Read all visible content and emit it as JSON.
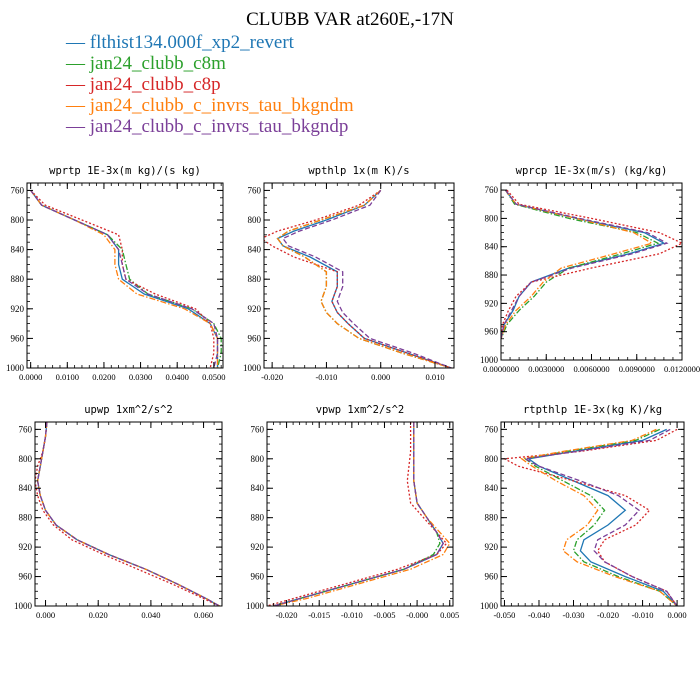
{
  "title": "CLUBB VAR at260E,-17N",
  "legend": [
    {
      "name": "flthist134.000f_xp2_revert",
      "color": "#1f77b4",
      "dash": "solid"
    },
    {
      "name": "jan24_clubb_c8m",
      "color": "#2ca02c",
      "dash": "dashdot"
    },
    {
      "name": "jan24_clubb_c8p",
      "color": "#d62728",
      "dash": "dot"
    },
    {
      "name": "jan24_clubb_c_invrs_tau_bkgndm",
      "color": "#ff7f0e",
      "dash": "dashdot"
    },
    {
      "name": "jan24_clubb_c_invrs_tau_bkgndp",
      "color": "#7b3f98",
      "dash": "dash"
    }
  ],
  "chart_data": [
    {
      "type": "line",
      "title": "wprtp  1E-3x(m kg)/(s kg)",
      "xlim": [
        -0.001,
        0.0525
      ],
      "ylim": [
        1000,
        750
      ],
      "xticks": [
        0.0,
        0.01,
        0.02,
        0.03,
        0.04,
        0.05
      ],
      "xtick_labels": [
        "0.0000",
        "0.0100",
        "0.0200",
        "0.0300",
        "0.0400",
        "0.0500"
      ],
      "yticks": [
        760,
        800,
        840,
        880,
        920,
        960,
        1000
      ],
      "y": [
        760,
        780,
        800,
        820,
        840,
        860,
        880,
        900,
        920,
        940,
        960,
        980,
        1000
      ],
      "series": [
        {
          "values": [
            0.0,
            0.003,
            0.012,
            0.021,
            0.024,
            0.024,
            0.025,
            0.031,
            0.043,
            0.049,
            0.051,
            0.051,
            0.051
          ]
        },
        {
          "values": [
            0.0,
            0.003,
            0.012,
            0.021,
            0.025,
            0.026,
            0.027,
            0.032,
            0.044,
            0.05,
            0.052,
            0.052,
            0.051
          ]
        },
        {
          "values": [
            0.0,
            0.004,
            0.014,
            0.024,
            0.025,
            0.025,
            0.026,
            0.034,
            0.045,
            0.049,
            0.05,
            0.05,
            0.049
          ]
        },
        {
          "values": [
            0.0,
            0.003,
            0.012,
            0.02,
            0.023,
            0.023,
            0.024,
            0.029,
            0.042,
            0.049,
            0.051,
            0.051,
            0.051
          ]
        },
        {
          "values": [
            0.0,
            0.003,
            0.012,
            0.021,
            0.024,
            0.025,
            0.026,
            0.032,
            0.044,
            0.05,
            0.051,
            0.051,
            0.05
          ]
        }
      ]
    },
    {
      "type": "line",
      "title": "wpthlp  1x(m K)/s",
      "xlim": [
        -0.0215,
        0.0135
      ],
      "ylim": [
        1000,
        750
      ],
      "xticks": [
        -0.02,
        -0.01,
        0.0,
        0.01
      ],
      "xtick_labels": [
        "-0.020",
        "-0.010",
        "0.000",
        "0.010"
      ],
      "yticks": [
        760,
        800,
        840,
        880,
        920,
        960,
        1000
      ],
      "y": [
        760,
        780,
        800,
        815,
        825,
        835,
        850,
        870,
        890,
        910,
        925,
        940,
        960,
        980,
        1000
      ],
      "series": [
        {
          "values": [
            0.0,
            -0.003,
            -0.01,
            -0.016,
            -0.019,
            -0.018,
            -0.013,
            -0.008,
            -0.008,
            -0.009,
            -0.008,
            -0.006,
            -0.003,
            0.005,
            0.013
          ]
        },
        {
          "values": [
            0.0,
            -0.003,
            -0.011,
            -0.017,
            -0.019,
            -0.018,
            -0.014,
            -0.01,
            -0.01,
            -0.011,
            -0.01,
            -0.008,
            -0.004,
            0.004,
            0.013
          ]
        },
        {
          "values": [
            0.0,
            -0.004,
            -0.012,
            -0.019,
            -0.022,
            -0.02,
            -0.016,
            -0.008,
            -0.008,
            -0.009,
            -0.008,
            -0.006,
            -0.003,
            0.005,
            0.013
          ]
        },
        {
          "values": [
            0.0,
            -0.003,
            -0.011,
            -0.017,
            -0.019,
            -0.018,
            -0.014,
            -0.01,
            -0.01,
            -0.011,
            -0.01,
            -0.008,
            -0.004,
            0.004,
            0.013
          ]
        },
        {
          "values": [
            0.0,
            -0.002,
            -0.009,
            -0.015,
            -0.018,
            -0.017,
            -0.012,
            -0.007,
            -0.007,
            -0.008,
            -0.007,
            -0.005,
            -0.002,
            0.006,
            0.013
          ]
        }
      ]
    },
    {
      "type": "line",
      "title": "wprcp  1E-3x(m/s) (kg/kg)",
      "xlim": [
        0.0,
        0.012
      ],
      "ylim": [
        1000,
        750
      ],
      "xticks": [
        0.0,
        0.003,
        0.006,
        0.009,
        0.012
      ],
      "xtick_labels": [
        "0.0000000",
        "0.0030000",
        "0.0060000",
        "0.0090000",
        "0.0120000"
      ],
      "yticks": [
        760,
        800,
        840,
        880,
        920,
        960,
        1000
      ],
      "y": [
        760,
        780,
        800,
        820,
        835,
        850,
        870,
        890,
        910,
        930,
        950,
        970
      ],
      "series": [
        {
          "values": [
            0.0003,
            0.001,
            0.005,
            0.0095,
            0.0108,
            0.0085,
            0.0045,
            0.002,
            0.0012,
            0.0008,
            0.0002,
            0.0
          ]
        },
        {
          "values": [
            0.0003,
            0.0009,
            0.0045,
            0.009,
            0.0104,
            0.008,
            0.0045,
            0.003,
            0.0022,
            0.0012,
            0.0004,
            0.0
          ]
        },
        {
          "values": [
            0.0004,
            0.0012,
            0.006,
            0.0105,
            0.012,
            0.0105,
            0.006,
            0.002,
            0.001,
            0.0005,
            0.0001,
            0.0
          ]
        },
        {
          "values": [
            0.0003,
            0.001,
            0.005,
            0.0088,
            0.01,
            0.0075,
            0.004,
            0.0028,
            0.002,
            0.001,
            0.0003,
            0.0
          ]
        },
        {
          "values": [
            0.0003,
            0.001,
            0.0052,
            0.0097,
            0.011,
            0.0087,
            0.0047,
            0.002,
            0.0012,
            0.0007,
            0.0002,
            0.0
          ]
        }
      ]
    },
    {
      "type": "line",
      "title": "upwp  1xm^2/s^2",
      "xlim": [
        -0.004,
        0.067
      ],
      "ylim": [
        1000,
        750
      ],
      "xticks": [
        0.0,
        0.02,
        0.04,
        0.06
      ],
      "xtick_labels": [
        "0.000",
        "0.020",
        "0.040",
        "0.060"
      ],
      "yticks": [
        760,
        800,
        840,
        880,
        920,
        960,
        1000
      ],
      "y": [
        750,
        770,
        790,
        810,
        830,
        850,
        870,
        890,
        910,
        930,
        950,
        970,
        990,
        1000
      ],
      "series": [
        {
          "values": [
            0.0005,
            0.0,
            -0.001,
            -0.002,
            -0.003,
            -0.002,
            0.0,
            0.004,
            0.012,
            0.024,
            0.038,
            0.05,
            0.061,
            0.066
          ]
        },
        {
          "values": [
            0.0005,
            0.0,
            -0.001,
            -0.002,
            -0.003,
            -0.002,
            0.0,
            0.004,
            0.012,
            0.024,
            0.038,
            0.05,
            0.061,
            0.066
          ]
        },
        {
          "values": [
            0.0005,
            0.0,
            -0.001,
            -0.003,
            -0.004,
            -0.003,
            -0.001,
            0.003,
            0.01,
            0.022,
            0.035,
            0.048,
            0.06,
            0.066
          ]
        },
        {
          "values": [
            0.0005,
            0.0,
            -0.001,
            -0.002,
            -0.003,
            -0.002,
            0.0,
            0.004,
            0.012,
            0.024,
            0.038,
            0.05,
            0.061,
            0.066
          ]
        },
        {
          "values": [
            0.0005,
            0.0,
            -0.001,
            -0.002,
            -0.003,
            -0.002,
            0.0,
            0.004,
            0.012,
            0.024,
            0.038,
            0.05,
            0.061,
            0.066
          ]
        }
      ]
    },
    {
      "type": "line",
      "title": "vpwp  1xm^2/s^2",
      "xlim": [
        -0.023,
        0.0055
      ],
      "ylim": [
        1000,
        750
      ],
      "xticks": [
        -0.02,
        -0.015,
        -0.01,
        -0.005,
        0.0,
        0.005
      ],
      "xtick_labels": [
        "-0.020",
        "-0.015",
        "-0.010",
        "-0.005",
        "-0.000",
        "0.005"
      ],
      "yticks": [
        760,
        800,
        840,
        880,
        920,
        960,
        1000
      ],
      "y": [
        750,
        790,
        830,
        860,
        880,
        900,
        915,
        930,
        950,
        970,
        990,
        1000
      ],
      "series": [
        {
          "values": [
            -0.0005,
            -0.0005,
            -0.0005,
            0.0,
            0.0015,
            0.003,
            0.004,
            0.003,
            -0.002,
            -0.01,
            -0.018,
            -0.022
          ]
        },
        {
          "values": [
            -0.0005,
            -0.0005,
            -0.0005,
            0.0,
            0.0015,
            0.003,
            0.0035,
            0.0025,
            -0.002,
            -0.01,
            -0.018,
            -0.022
          ]
        },
        {
          "values": [
            -0.001,
            -0.001,
            -0.0015,
            -0.001,
            0.001,
            0.003,
            0.0045,
            0.003,
            -0.003,
            -0.011,
            -0.019,
            -0.023
          ]
        },
        {
          "values": [
            -0.0005,
            -0.0005,
            -0.0005,
            0.0,
            0.0015,
            0.0035,
            0.005,
            0.004,
            -0.001,
            -0.009,
            -0.017,
            -0.022
          ]
        },
        {
          "values": [
            -0.0005,
            -0.0005,
            -0.0005,
            0.0,
            0.0015,
            0.003,
            0.004,
            0.003,
            -0.002,
            -0.01,
            -0.018,
            -0.022
          ]
        }
      ]
    },
    {
      "type": "line",
      "title": "rtpthlp  1E-3x(kg K)/kg",
      "xlim": [
        -0.051,
        0.002
      ],
      "ylim": [
        1000,
        750
      ],
      "xticks": [
        -0.05,
        -0.04,
        -0.03,
        -0.02,
        -0.01,
        0.0
      ],
      "xtick_labels": [
        "-0.050",
        "-0.040",
        "-0.030",
        "-0.020",
        "-0.010",
        "0.000"
      ],
      "yticks": [
        760,
        800,
        840,
        880,
        920,
        960,
        1000
      ],
      "y": [
        760,
        775,
        790,
        800,
        810,
        830,
        850,
        870,
        890,
        910,
        925,
        940,
        960,
        980,
        1000
      ],
      "series": [
        {
          "values": [
            -0.003,
            -0.01,
            -0.03,
            -0.043,
            -0.04,
            -0.03,
            -0.02,
            -0.015,
            -0.02,
            -0.027,
            -0.028,
            -0.025,
            -0.015,
            -0.004,
            0.0
          ]
        },
        {
          "values": [
            -0.005,
            -0.012,
            -0.032,
            -0.044,
            -0.041,
            -0.033,
            -0.025,
            -0.021,
            -0.024,
            -0.029,
            -0.03,
            -0.027,
            -0.017,
            -0.005,
            0.0
          ]
        },
        {
          "values": [
            0.0,
            -0.006,
            -0.028,
            -0.05,
            -0.046,
            -0.03,
            -0.015,
            -0.008,
            -0.012,
            -0.021,
            -0.023,
            -0.021,
            -0.013,
            -0.003,
            0.0
          ]
        },
        {
          "values": [
            -0.006,
            -0.013,
            -0.033,
            -0.045,
            -0.042,
            -0.035,
            -0.027,
            -0.023,
            -0.026,
            -0.032,
            -0.033,
            -0.029,
            -0.018,
            -0.005,
            0.0
          ]
        },
        {
          "values": [
            -0.002,
            -0.008,
            -0.029,
            -0.044,
            -0.04,
            -0.028,
            -0.017,
            -0.011,
            -0.015,
            -0.023,
            -0.024,
            -0.021,
            -0.013,
            -0.003,
            0.0
          ]
        }
      ]
    }
  ]
}
